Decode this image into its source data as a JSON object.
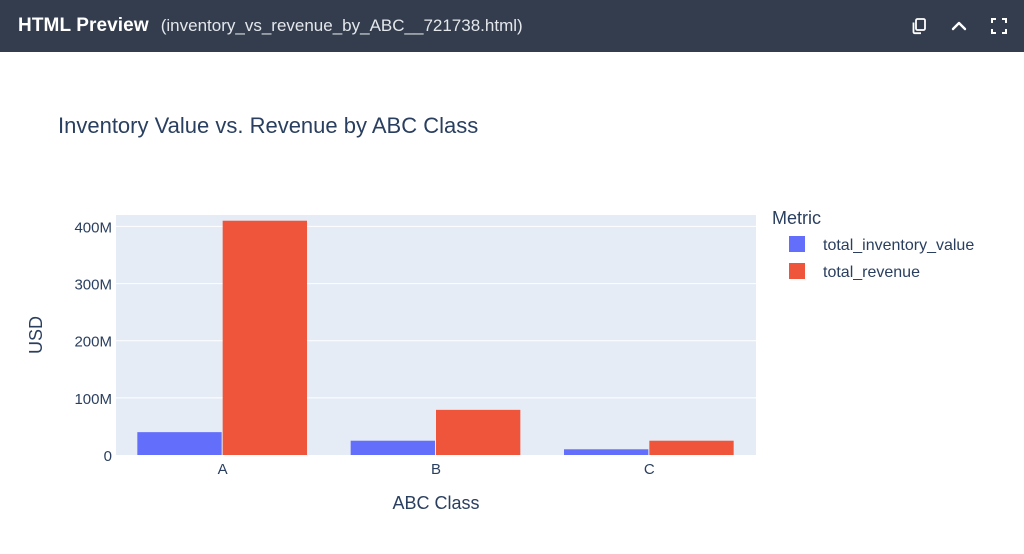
{
  "window": {
    "title": "HTML Preview",
    "filename": "(inventory_vs_revenue_by_ABC__721738.html)",
    "actions": [
      "copy-icon",
      "collapse-icon",
      "fullscreen-icon"
    ]
  },
  "colors": {
    "topbar": "#333d4d",
    "plot_bg": "#e5ecf6",
    "series_inventory": "#636efa",
    "series_revenue": "#ef553b",
    "text": "#2a3f5f"
  },
  "chart_data": {
    "type": "bar",
    "title": "Inventory Value vs. Revenue by ABC Class",
    "xlabel": "ABC Class",
    "ylabel": "USD",
    "categories": [
      "A",
      "B",
      "C"
    ],
    "series": [
      {
        "name": "total_inventory_value",
        "values": [
          40000000,
          25000000,
          10000000
        ]
      },
      {
        "name": "total_revenue",
        "values": [
          410000000,
          79000000,
          25000000
        ]
      }
    ],
    "ylim": [
      0,
      420000000
    ],
    "yticks": [
      0,
      100000000,
      200000000,
      300000000,
      400000000
    ],
    "ytick_labels": [
      "0",
      "100M",
      "200M",
      "300M",
      "400M"
    ],
    "legend_title": "Metric",
    "legend_position": "right",
    "grid": true
  }
}
